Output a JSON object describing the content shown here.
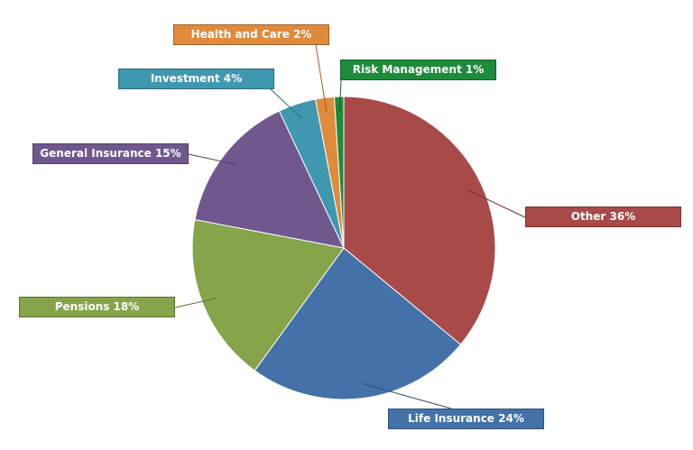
{
  "chart_data": {
    "type": "pie",
    "start": "top",
    "direction": "clockwise",
    "slices": [
      {
        "label": "Other",
        "value": 36,
        "text": "Other 36%",
        "color": "#a84a48"
      },
      {
        "label": "Life Insurance",
        "value": 24,
        "text": "Life Insurance 24%",
        "color": "#4472a8"
      },
      {
        "label": "Pensions",
        "value": 18,
        "text": "Pensions 18%",
        "color": "#86a44a"
      },
      {
        "label": "General Insurance",
        "value": 15,
        "text": "General Insurance 15%",
        "color": "#70588f"
      },
      {
        "label": "Investment",
        "value": 4,
        "text": "Investment 4%",
        "color": "#3f97b0"
      },
      {
        "label": "Health and Care",
        "value": 2,
        "text": "Health and Care 2%",
        "color": "#e08a3c"
      },
      {
        "label": "Risk Management",
        "value": 1,
        "text": "Risk Management 1%",
        "color": "#1e8b3a"
      }
    ]
  }
}
